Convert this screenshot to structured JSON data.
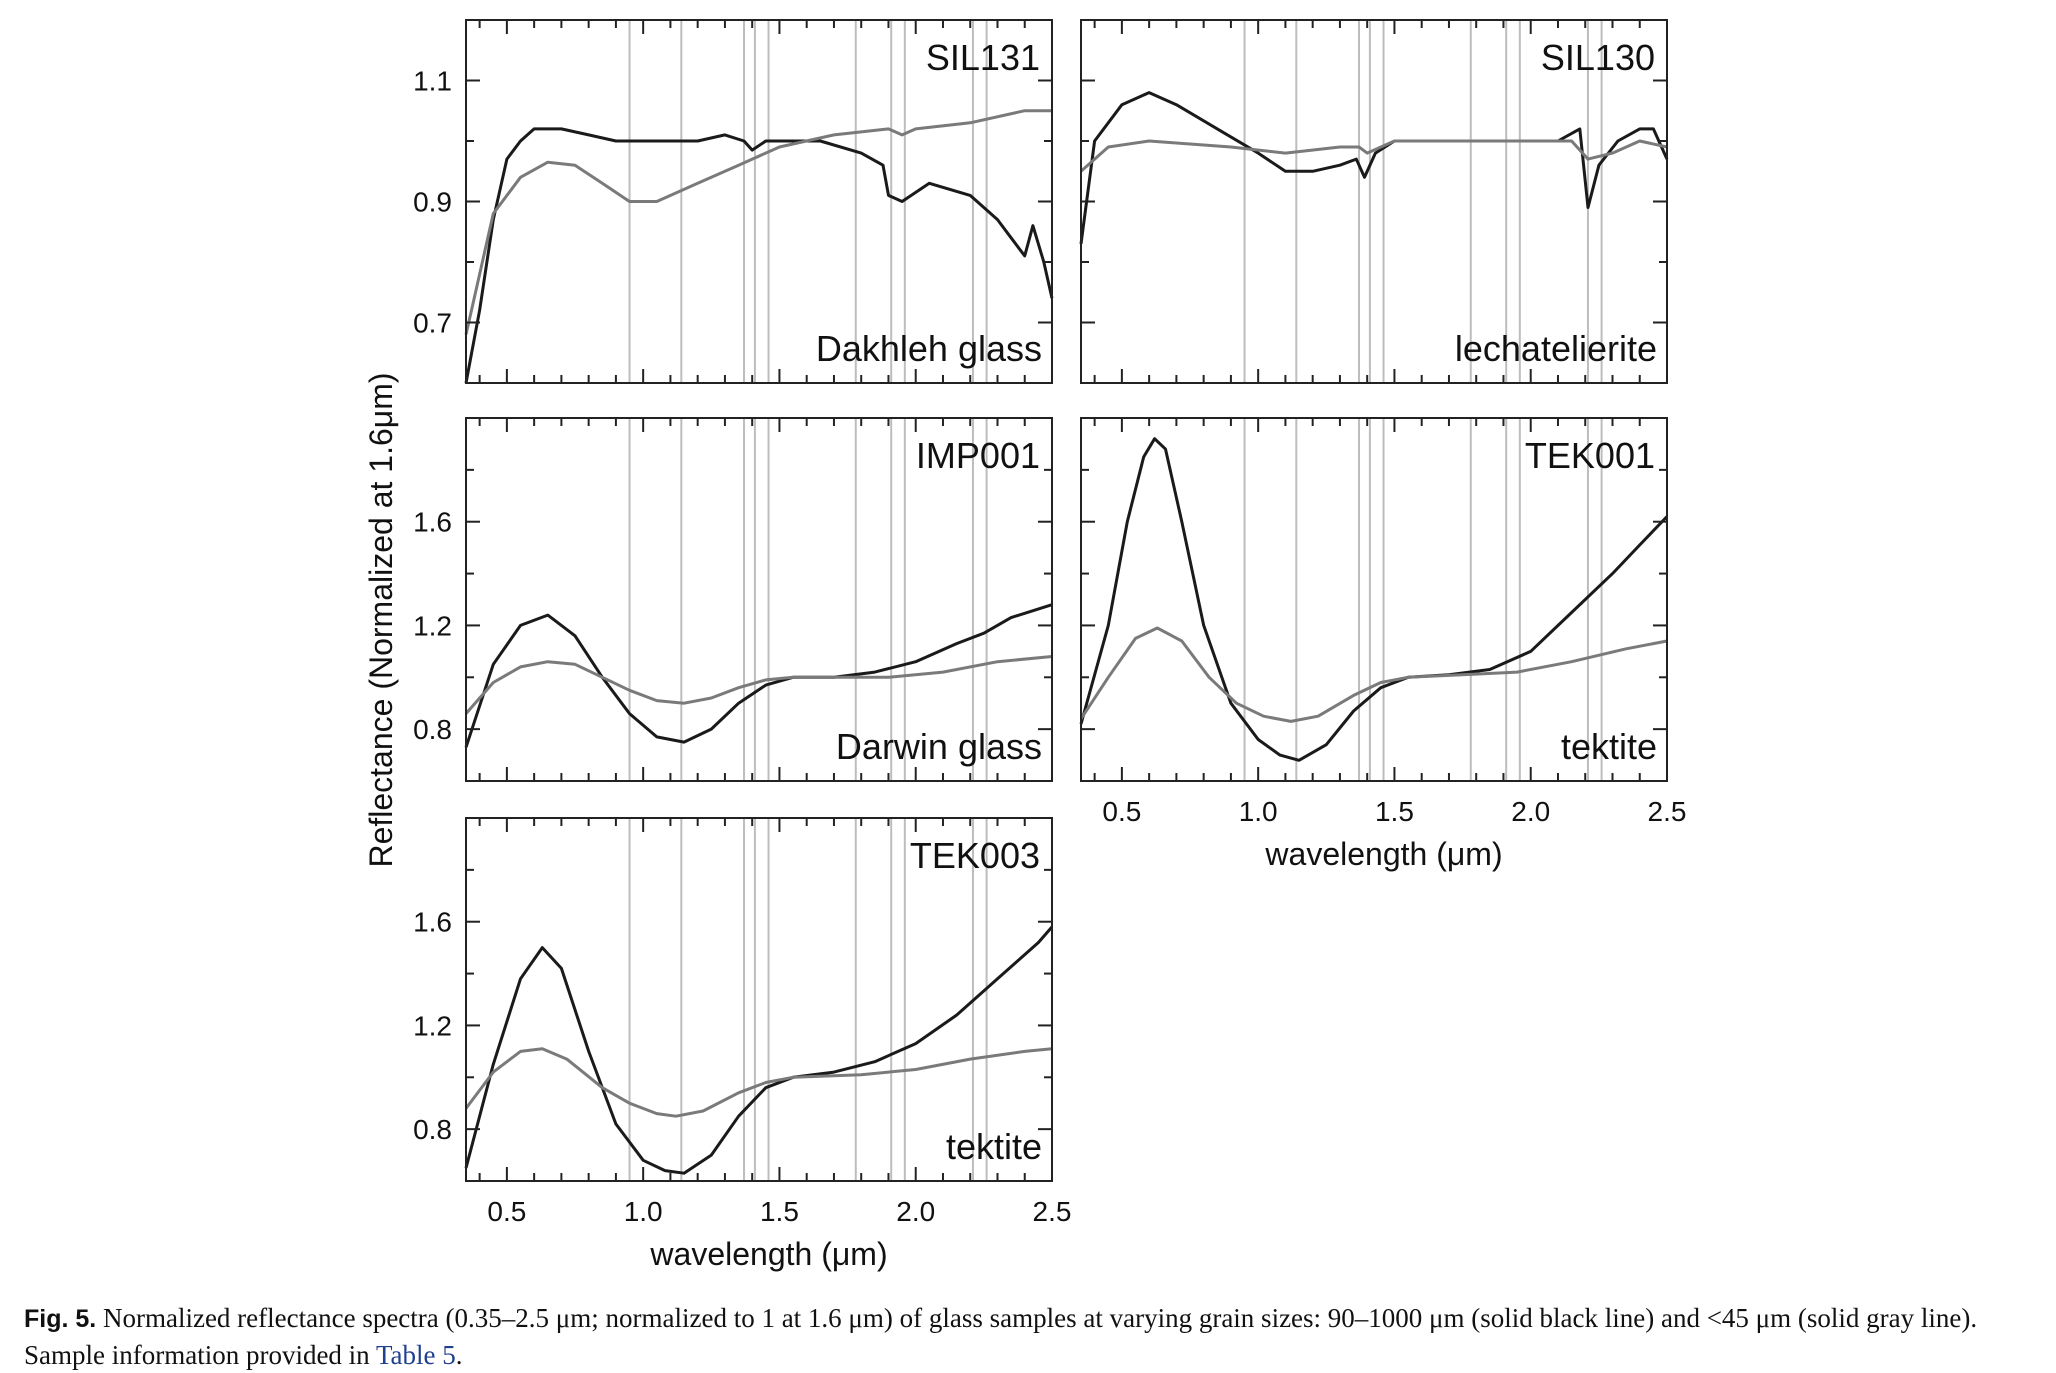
{
  "y_axis_label": "Reflectance (Normalized at 1.6μm)",
  "x_axis_label": "wavelength (μm)",
  "caption": {
    "fig_label": "Fig. 5.",
    "text": " Normalized reflectance spectra (0.35–2.5 μm; normalized to 1 at 1.6 μm) of glass samples at varying grain sizes: 90–1000 μm (solid black line) and <45 μm (solid gray line). Sample information provided in ",
    "link": "Table 5",
    "end": "."
  },
  "colors": {
    "coarse": "#1a1a1a",
    "fine": "#7a7a7a",
    "vline": "#bdbdbd",
    "frame": "#222222"
  },
  "chart_data": [
    {
      "type": "line",
      "sample": "SIL131",
      "material": "Dakhleh glass",
      "xlim": [
        0.35,
        2.5
      ],
      "ylim": [
        0.6,
        1.2
      ],
      "yticks": [
        "0.7",
        "0.9",
        "1.1"
      ],
      "xticks": [
        "0.5",
        "1.0",
        "1.5",
        "2.0",
        "2.5"
      ],
      "show_xticklabels": false,
      "vlines": [
        0.95,
        1.14,
        1.37,
        1.41,
        1.46,
        1.78,
        1.91,
        1.96,
        2.21,
        2.26
      ],
      "series": [
        {
          "role": "coarse",
          "points": [
            [
              0.35,
              0.6
            ],
            [
              0.4,
              0.72
            ],
            [
              0.45,
              0.87
            ],
            [
              0.5,
              0.97
            ],
            [
              0.55,
              1.0
            ],
            [
              0.6,
              1.02
            ],
            [
              0.7,
              1.02
            ],
            [
              0.8,
              1.01
            ],
            [
              0.9,
              1.0
            ],
            [
              1.0,
              1.0
            ],
            [
              1.2,
              1.0
            ],
            [
              1.3,
              1.01
            ],
            [
              1.37,
              1.0
            ],
            [
              1.4,
              0.985
            ],
            [
              1.45,
              1.0
            ],
            [
              1.5,
              1.0
            ],
            [
              1.65,
              1.0
            ],
            [
              1.8,
              0.98
            ],
            [
              1.88,
              0.96
            ],
            [
              1.9,
              0.91
            ],
            [
              1.95,
              0.9
            ],
            [
              2.05,
              0.93
            ],
            [
              2.2,
              0.91
            ],
            [
              2.3,
              0.87
            ],
            [
              2.35,
              0.84
            ],
            [
              2.4,
              0.81
            ],
            [
              2.43,
              0.86
            ],
            [
              2.47,
              0.8
            ],
            [
              2.5,
              0.74
            ]
          ]
        },
        {
          "role": "fine",
          "points": [
            [
              0.35,
              0.68
            ],
            [
              0.45,
              0.88
            ],
            [
              0.55,
              0.94
            ],
            [
              0.65,
              0.965
            ],
            [
              0.75,
              0.96
            ],
            [
              0.85,
              0.93
            ],
            [
              0.95,
              0.9
            ],
            [
              1.05,
              0.9
            ],
            [
              1.2,
              0.93
            ],
            [
              1.35,
              0.96
            ],
            [
              1.5,
              0.99
            ],
            [
              1.7,
              1.01
            ],
            [
              1.9,
              1.02
            ],
            [
              1.95,
              1.01
            ],
            [
              2.0,
              1.02
            ],
            [
              2.2,
              1.03
            ],
            [
              2.4,
              1.05
            ],
            [
              2.5,
              1.05
            ]
          ]
        }
      ]
    },
    {
      "type": "line",
      "sample": "SIL130",
      "material": "lechatelierite",
      "xlim": [
        0.35,
        2.5
      ],
      "ylim": [
        0.6,
        1.2
      ],
      "yticks": [],
      "xticks": [
        "0.5",
        "1.0",
        "1.5",
        "2.0",
        "2.5"
      ],
      "show_xticklabels": false,
      "vlines": [
        0.95,
        1.14,
        1.37,
        1.41,
        1.46,
        1.78,
        1.91,
        1.96,
        2.21,
        2.26
      ],
      "series": [
        {
          "role": "coarse",
          "points": [
            [
              0.35,
              0.83
            ],
            [
              0.4,
              1.0
            ],
            [
              0.5,
              1.06
            ],
            [
              0.6,
              1.08
            ],
            [
              0.7,
              1.06
            ],
            [
              0.85,
              1.02
            ],
            [
              1.0,
              0.98
            ],
            [
              1.1,
              0.95
            ],
            [
              1.2,
              0.95
            ],
            [
              1.3,
              0.96
            ],
            [
              1.36,
              0.97
            ],
            [
              1.39,
              0.94
            ],
            [
              1.43,
              0.98
            ],
            [
              1.5,
              1.0
            ],
            [
              1.7,
              1.0
            ],
            [
              1.9,
              1.0
            ],
            [
              2.1,
              1.0
            ],
            [
              2.18,
              1.02
            ],
            [
              2.21,
              0.89
            ],
            [
              2.25,
              0.96
            ],
            [
              2.32,
              1.0
            ],
            [
              2.4,
              1.02
            ],
            [
              2.45,
              1.02
            ],
            [
              2.5,
              0.97
            ]
          ]
        },
        {
          "role": "fine",
          "points": [
            [
              0.35,
              0.95
            ],
            [
              0.45,
              0.99
            ],
            [
              0.6,
              1.0
            ],
            [
              0.9,
              0.99
            ],
            [
              1.1,
              0.98
            ],
            [
              1.3,
              0.99
            ],
            [
              1.37,
              0.99
            ],
            [
              1.4,
              0.98
            ],
            [
              1.5,
              1.0
            ],
            [
              1.7,
              1.0
            ],
            [
              2.0,
              1.0
            ],
            [
              2.15,
              1.0
            ],
            [
              2.21,
              0.97
            ],
            [
              2.3,
              0.98
            ],
            [
              2.4,
              1.0
            ],
            [
              2.5,
              0.99
            ]
          ]
        }
      ]
    },
    {
      "type": "line",
      "sample": "IMP001",
      "material": "Darwin glass",
      "xlim": [
        0.35,
        2.5
      ],
      "ylim": [
        0.6,
        2.0
      ],
      "yticks": [
        "0.8",
        "1.2",
        "1.6"
      ],
      "xticks": [
        "0.5",
        "1.0",
        "1.5",
        "2.0",
        "2.5"
      ],
      "show_xticklabels": false,
      "vlines": [
        0.95,
        1.14,
        1.37,
        1.41,
        1.46,
        1.78,
        1.91,
        1.96,
        2.21,
        2.26
      ],
      "series": [
        {
          "role": "coarse",
          "points": [
            [
              0.35,
              0.73
            ],
            [
              0.45,
              1.05
            ],
            [
              0.55,
              1.2
            ],
            [
              0.65,
              1.24
            ],
            [
              0.75,
              1.16
            ],
            [
              0.85,
              1.0
            ],
            [
              0.95,
              0.86
            ],
            [
              1.05,
              0.77
            ],
            [
              1.15,
              0.75
            ],
            [
              1.25,
              0.8
            ],
            [
              1.35,
              0.9
            ],
            [
              1.45,
              0.97
            ],
            [
              1.55,
              1.0
            ],
            [
              1.7,
              1.0
            ],
            [
              1.85,
              1.02
            ],
            [
              2.0,
              1.06
            ],
            [
              2.15,
              1.13
            ],
            [
              2.25,
              1.17
            ],
            [
              2.35,
              1.23
            ],
            [
              2.5,
              1.28
            ]
          ]
        },
        {
          "role": "fine",
          "points": [
            [
              0.35,
              0.86
            ],
            [
              0.45,
              0.98
            ],
            [
              0.55,
              1.04
            ],
            [
              0.65,
              1.06
            ],
            [
              0.75,
              1.05
            ],
            [
              0.85,
              1.0
            ],
            [
              0.95,
              0.95
            ],
            [
              1.05,
              0.91
            ],
            [
              1.15,
              0.9
            ],
            [
              1.25,
              0.92
            ],
            [
              1.35,
              0.96
            ],
            [
              1.45,
              0.99
            ],
            [
              1.55,
              1.0
            ],
            [
              1.7,
              1.0
            ],
            [
              1.9,
              1.0
            ],
            [
              2.1,
              1.02
            ],
            [
              2.3,
              1.06
            ],
            [
              2.5,
              1.08
            ]
          ]
        }
      ]
    },
    {
      "type": "line",
      "sample": "TEK001",
      "material": "tektite",
      "xlim": [
        0.35,
        2.5
      ],
      "ylim": [
        0.6,
        2.0
      ],
      "yticks": [],
      "xticks": [
        "0.5",
        "1.0",
        "1.5",
        "2.0",
        "2.5"
      ],
      "show_xticklabels": true,
      "vlines": [
        0.95,
        1.14,
        1.37,
        1.41,
        1.46,
        1.78,
        1.91,
        1.96,
        2.21,
        2.26
      ],
      "series": [
        {
          "role": "coarse",
          "points": [
            [
              0.35,
              0.82
            ],
            [
              0.45,
              1.2
            ],
            [
              0.52,
              1.6
            ],
            [
              0.58,
              1.85
            ],
            [
              0.62,
              1.92
            ],
            [
              0.66,
              1.88
            ],
            [
              0.72,
              1.6
            ],
            [
              0.8,
              1.2
            ],
            [
              0.9,
              0.9
            ],
            [
              1.0,
              0.76
            ],
            [
              1.08,
              0.7
            ],
            [
              1.15,
              0.68
            ],
            [
              1.25,
              0.74
            ],
            [
              1.35,
              0.87
            ],
            [
              1.45,
              0.96
            ],
            [
              1.55,
              1.0
            ],
            [
              1.7,
              1.01
            ],
            [
              1.85,
              1.03
            ],
            [
              2.0,
              1.1
            ],
            [
              2.15,
              1.25
            ],
            [
              2.3,
              1.4
            ],
            [
              2.4,
              1.51
            ],
            [
              2.5,
              1.62
            ]
          ]
        },
        {
          "role": "fine",
          "points": [
            [
              0.35,
              0.84
            ],
            [
              0.45,
              1.0
            ],
            [
              0.55,
              1.15
            ],
            [
              0.63,
              1.19
            ],
            [
              0.72,
              1.14
            ],
            [
              0.82,
              1.0
            ],
            [
              0.92,
              0.9
            ],
            [
              1.02,
              0.85
            ],
            [
              1.12,
              0.83
            ],
            [
              1.22,
              0.85
            ],
            [
              1.35,
              0.93
            ],
            [
              1.45,
              0.98
            ],
            [
              1.55,
              1.0
            ],
            [
              1.75,
              1.01
            ],
            [
              1.95,
              1.02
            ],
            [
              2.15,
              1.06
            ],
            [
              2.35,
              1.11
            ],
            [
              2.5,
              1.14
            ]
          ]
        }
      ]
    },
    {
      "type": "line",
      "sample": "TEK003",
      "material": "tektite",
      "xlim": [
        0.35,
        2.5
      ],
      "ylim": [
        0.6,
        2.0
      ],
      "yticks": [
        "0.8",
        "1.2",
        "1.6"
      ],
      "xticks": [
        "0.5",
        "1.0",
        "1.5",
        "2.0",
        "2.5"
      ],
      "show_xticklabels": true,
      "vlines": [
        0.95,
        1.14,
        1.37,
        1.41,
        1.46,
        1.78,
        1.91,
        1.96,
        2.21,
        2.26
      ],
      "series": [
        {
          "role": "coarse",
          "points": [
            [
              0.35,
              0.65
            ],
            [
              0.45,
              1.05
            ],
            [
              0.55,
              1.38
            ],
            [
              0.63,
              1.5
            ],
            [
              0.7,
              1.42
            ],
            [
              0.8,
              1.1
            ],
            [
              0.9,
              0.82
            ],
            [
              1.0,
              0.68
            ],
            [
              1.08,
              0.64
            ],
            [
              1.15,
              0.63
            ],
            [
              1.25,
              0.7
            ],
            [
              1.35,
              0.85
            ],
            [
              1.45,
              0.96
            ],
            [
              1.55,
              1.0
            ],
            [
              1.7,
              1.02
            ],
            [
              1.85,
              1.06
            ],
            [
              2.0,
              1.13
            ],
            [
              2.15,
              1.24
            ],
            [
              2.3,
              1.38
            ],
            [
              2.45,
              1.52
            ],
            [
              2.5,
              1.58
            ]
          ]
        },
        {
          "role": "fine",
          "points": [
            [
              0.35,
              0.88
            ],
            [
              0.45,
              1.02
            ],
            [
              0.55,
              1.1
            ],
            [
              0.63,
              1.11
            ],
            [
              0.72,
              1.07
            ],
            [
              0.85,
              0.96
            ],
            [
              0.95,
              0.9
            ],
            [
              1.05,
              0.86
            ],
            [
              1.12,
              0.85
            ],
            [
              1.22,
              0.87
            ],
            [
              1.35,
              0.94
            ],
            [
              1.45,
              0.98
            ],
            [
              1.55,
              1.0
            ],
            [
              1.8,
              1.01
            ],
            [
              2.0,
              1.03
            ],
            [
              2.2,
              1.07
            ],
            [
              2.4,
              1.1
            ],
            [
              2.5,
              1.11
            ]
          ]
        }
      ]
    }
  ]
}
